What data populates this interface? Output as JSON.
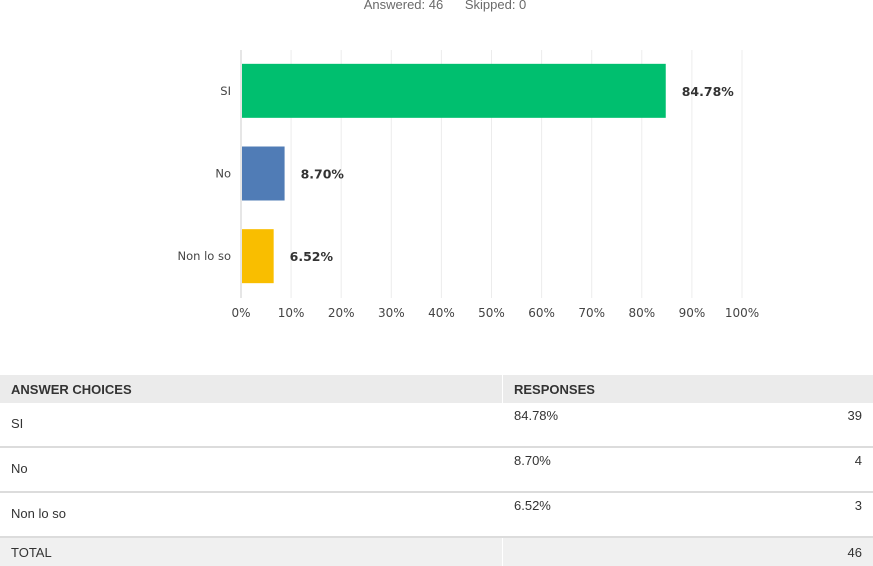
{
  "summary": {
    "answered": "Answered: 46",
    "skipped": "Skipped: 0"
  },
  "chart_data": {
    "type": "bar",
    "orientation": "horizontal",
    "categories": [
      "SI",
      "No",
      "Non lo so"
    ],
    "values": [
      84.78,
      8.7,
      6.52
    ],
    "value_labels": [
      "84.78%",
      "8.70%",
      "6.52%"
    ],
    "colors": [
      "#00bf6f",
      "#507cb6",
      "#f9be00"
    ],
    "xlim": [
      0,
      100
    ],
    "xticks": [
      "0%",
      "10%",
      "20%",
      "30%",
      "40%",
      "50%",
      "60%",
      "70%",
      "80%",
      "90%",
      "100%"
    ],
    "grid": true
  },
  "table": {
    "headers": [
      "ANSWER CHOICES",
      "RESPONSES"
    ],
    "rows": [
      {
        "choice": "SI",
        "percent": "84.78%",
        "count": "39"
      },
      {
        "choice": "No",
        "percent": "8.70%",
        "count": "4"
      },
      {
        "choice": "Non lo so",
        "percent": "6.52%",
        "count": "3"
      }
    ],
    "total_label": "TOTAL",
    "total": "46"
  }
}
